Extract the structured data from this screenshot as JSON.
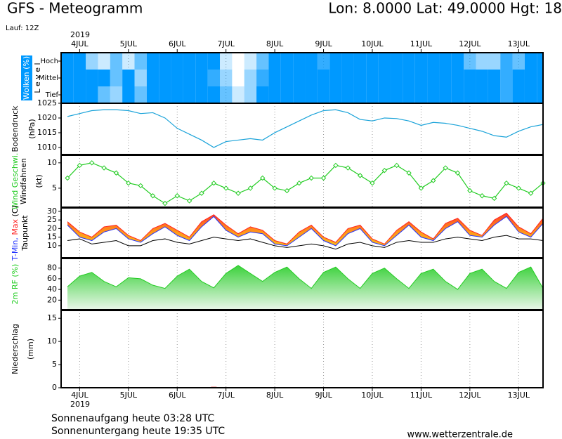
{
  "header": {
    "title": "GFS - Meteogramm",
    "location": "Lon: 8.0000 Lat: 49.0000 Hgt: 18",
    "run": "Lauf: 12Z",
    "year": "2019"
  },
  "footer": {
    "sunrise": "Sonnenaufgang heute 03:28 UTC",
    "sunset": "Sonnenuntergang heute 19:35 UTC",
    "source": "www.wetterzentrale.de"
  },
  "chart_data": [
    {
      "type": "heatmap",
      "ylabel": "Wolken (%)",
      "level_label": "L e v e l",
      "color": "#0099ff",
      "xlim": [
        3.62,
        13.5
      ],
      "xticks": [
        {
          "value": 4,
          "label": "4JUL"
        },
        {
          "value": 5,
          "label": "5JUL"
        },
        {
          "value": 6,
          "label": "6JUL"
        },
        {
          "value": 7,
          "label": "7JUL"
        },
        {
          "value": 8,
          "label": "8JUL"
        },
        {
          "value": 9,
          "label": "9JUL"
        },
        {
          "value": 10,
          "label": "10JUL"
        },
        {
          "value": 11,
          "label": "11JUL"
        },
        {
          "value": 12,
          "label": "12JUL"
        },
        {
          "value": 13,
          "label": "13JUL"
        }
      ],
      "x": [
        3.75,
        4,
        4.25,
        4.5,
        4.75,
        5,
        5.25,
        5.5,
        5.75,
        6,
        6.25,
        6.5,
        6.75,
        7,
        7.25,
        7.5,
        7.75,
        8,
        8.25,
        8.5,
        8.75,
        9,
        9.25,
        9.5,
        9.75,
        10,
        10.25,
        10.5,
        10.75,
        11,
        11.25,
        11.5,
        11.75,
        12,
        12.25,
        12.5,
        12.75,
        13,
        13.25,
        13.5
      ],
      "series": [
        {
          "name": "Hoch",
          "values": [
            100,
            100,
            40,
            20,
            60,
            20,
            60,
            100,
            100,
            100,
            100,
            100,
            100,
            20,
            0,
            20,
            60,
            100,
            100,
            100,
            100,
            80,
            100,
            100,
            100,
            100,
            100,
            100,
            100,
            100,
            100,
            100,
            100,
            60,
            40,
            40,
            80,
            60,
            100,
            100
          ]
        },
        {
          "name": "Mittel",
          "values": [
            100,
            100,
            100,
            100,
            60,
            100,
            40,
            100,
            100,
            100,
            100,
            100,
            80,
            40,
            0,
            40,
            80,
            100,
            100,
            100,
            100,
            100,
            100,
            100,
            100,
            100,
            100,
            100,
            100,
            100,
            100,
            100,
            100,
            100,
            100,
            100,
            80,
            100,
            100,
            100
          ]
        },
        {
          "name": "Tief",
          "values": [
            100,
            100,
            100,
            60,
            40,
            100,
            60,
            100,
            100,
            100,
            100,
            100,
            100,
            60,
            20,
            40,
            100,
            100,
            100,
            100,
            100,
            100,
            100,
            100,
            100,
            100,
            100,
            100,
            100,
            100,
            100,
            100,
            100,
            100,
            100,
            100,
            80,
            100,
            100,
            100
          ]
        }
      ]
    },
    {
      "type": "line",
      "ylabel": "Bodendruck",
      "yunit": "(hPa)",
      "xlim": [
        3.62,
        13.5
      ],
      "xticks": [
        {
          "value": 4,
          "label": "4JUL"
        },
        {
          "value": 5,
          "label": "5JUL"
        },
        {
          "value": 6,
          "label": "6JUL"
        },
        {
          "value": 7,
          "label": "7JUL"
        },
        {
          "value": 8,
          "label": "8JUL"
        },
        {
          "value": 9,
          "label": "9JUL"
        },
        {
          "value": 10,
          "label": "10JUL"
        },
        {
          "value": 11,
          "label": "11JUL"
        },
        {
          "value": 12,
          "label": "12JUL"
        },
        {
          "value": 13,
          "label": "13JUL"
        }
      ],
      "ylim": [
        1007.6,
        1025
      ],
      "yticks": [
        1010,
        1015,
        1020,
        1025
      ],
      "x": [
        3.75,
        4,
        4.25,
        4.5,
        4.75,
        5,
        5.25,
        5.5,
        5.75,
        6,
        6.25,
        6.5,
        6.75,
        7,
        7.25,
        7.5,
        7.75,
        8,
        8.25,
        8.5,
        8.75,
        9,
        9.25,
        9.5,
        9.75,
        10,
        10.25,
        10.5,
        10.75,
        11,
        11.25,
        11.5,
        11.75,
        12,
        12.25,
        12.5,
        12.75,
        13,
        13.25,
        13.5
      ],
      "series": [
        {
          "color": "#1aa3d9",
          "values": [
            1020.5,
            1021.5,
            1022.5,
            1022.8,
            1022.8,
            1022.5,
            1021.5,
            1021.8,
            1020,
            1016.5,
            1014.5,
            1012.5,
            1010,
            1012,
            1012.5,
            1013,
            1012.5,
            1015,
            1017,
            1019,
            1021,
            1022.5,
            1022.8,
            1021.8,
            1019.5,
            1019,
            1020,
            1019.8,
            1019,
            1017.5,
            1018.5,
            1018.2,
            1017.5,
            1016.5,
            1015.5,
            1014,
            1013.5,
            1015.5,
            1017,
            1017.8
          ]
        }
      ]
    },
    {
      "type": "line",
      "markers": true,
      "ylabel": "Windfahnen",
      "yunit": "(kt)",
      "xlim": [
        3.62,
        13.5
      ],
      "xticks": [
        {
          "value": 4,
          "label": "4JUL"
        },
        {
          "value": 5,
          "label": "5JUL"
        },
        {
          "value": 6,
          "label": "6JUL"
        },
        {
          "value": 7,
          "label": "7JUL"
        },
        {
          "value": 8,
          "label": "8JUL"
        },
        {
          "value": 9,
          "label": "9JUL"
        },
        {
          "value": 10,
          "label": "10JUL"
        },
        {
          "value": 11,
          "label": "11JUL"
        },
        {
          "value": 12,
          "label": "12JUL"
        },
        {
          "value": 13,
          "label": "13JUL"
        }
      ],
      "ylim": [
        1.25,
        11.5
      ],
      "yticks": [
        5,
        10
      ],
      "x": [
        3.75,
        4,
        4.25,
        4.5,
        4.75,
        5,
        5.25,
        5.5,
        5.75,
        6,
        6.25,
        6.5,
        6.75,
        7,
        7.25,
        7.5,
        7.75,
        8,
        8.25,
        8.5,
        8.75,
        9,
        9.25,
        9.5,
        9.75,
        10,
        10.25,
        10.5,
        10.75,
        11,
        11.25,
        11.5,
        11.75,
        12,
        12.25,
        12.5,
        12.75,
        13,
        13.25,
        13.5
      ],
      "series": [
        {
          "name": "Wind Geschwi.",
          "color": "#22cc22",
          "values": [
            7,
            9.5,
            10,
            9,
            8,
            6,
            5.5,
            3.5,
            2,
            3.5,
            2.5,
            4,
            6,
            5,
            4,
            5,
            7,
            5,
            4.5,
            6,
            7,
            7,
            9.5,
            9,
            7.5,
            6,
            8.5,
            9.5,
            8,
            5,
            6.5,
            9,
            8,
            4.5,
            3.5,
            3,
            6,
            5,
            4,
            6
          ]
        }
      ]
    },
    {
      "type": "band",
      "yunit": "(C)",
      "fill_colors": [
        "#ff2a2a",
        "#ff9a1a",
        "#f2d21c"
      ],
      "xlim": [
        3.62,
        13.5
      ],
      "xticks": [
        {
          "value": 4,
          "label": "4JUL"
        },
        {
          "value": 5,
          "label": "5JUL"
        },
        {
          "value": 6,
          "label": "6JUL"
        },
        {
          "value": 7,
          "label": "7JUL"
        },
        {
          "value": 8,
          "label": "8JUL"
        },
        {
          "value": 9,
          "label": "9JUL"
        },
        {
          "value": 10,
          "label": "10JUL"
        },
        {
          "value": 11,
          "label": "11JUL"
        },
        {
          "value": 12,
          "label": "12JUL"
        },
        {
          "value": 13,
          "label": "13JUL"
        }
      ],
      "ylim": [
        3,
        32
      ],
      "yticks": [
        10,
        15,
        20,
        25,
        30
      ],
      "x": [
        3.75,
        4,
        4.25,
        4.5,
        4.75,
        5,
        5.25,
        5.5,
        5.75,
        6,
        6.25,
        6.5,
        6.75,
        7,
        7.25,
        7.5,
        7.75,
        8,
        8.25,
        8.5,
        8.75,
        9,
        9.25,
        9.5,
        9.75,
        10,
        10.25,
        10.5,
        10.75,
        11,
        11.25,
        11.5,
        11.75,
        12,
        12.25,
        12.5,
        12.75,
        13,
        13.25,
        13.5
      ],
      "series": [
        {
          "name": "Max",
          "color": "#ff2222",
          "values": [
            24,
            18,
            15,
            21,
            22,
            16,
            13,
            20,
            23,
            19,
            15,
            24,
            28,
            22,
            17,
            21,
            19,
            13,
            11,
            18,
            22,
            15,
            12,
            20,
            22,
            14,
            11,
            19,
            24,
            18,
            14,
            23,
            26,
            19,
            16,
            25,
            29,
            21,
            17,
            26
          ]
        },
        {
          "name": "T-Min,",
          "color": "#2233ff",
          "values": [
            22,
            15,
            13,
            18,
            20,
            14,
            12,
            17,
            21,
            16,
            13,
            21,
            27,
            19,
            15,
            18,
            17,
            11,
            10,
            15,
            20,
            13,
            10,
            17,
            20,
            12,
            10,
            16,
            22,
            15,
            13,
            20,
            24,
            16,
            15,
            22,
            27,
            18,
            15,
            23
          ]
        },
        {
          "name": "Taupunkt",
          "color": "#000000",
          "values": [
            13,
            14,
            11,
            12,
            13,
            10,
            10,
            13,
            14,
            12,
            11,
            13,
            15,
            14,
            13,
            14,
            12,
            10,
            9,
            10,
            11,
            10,
            8,
            11,
            12,
            10,
            9,
            12,
            13,
            12,
            12,
            14,
            15,
            14,
            13,
            15,
            16,
            14,
            14,
            13
          ]
        }
      ]
    },
    {
      "type": "area",
      "fill_colors": [
        "#22cc22",
        "#e9f6e9"
      ],
      "xlim": [
        3.62,
        13.5
      ],
      "xticks": [
        {
          "value": 4,
          "label": "4JUL"
        },
        {
          "value": 5,
          "label": "5JUL"
        },
        {
          "value": 6,
          "label": "6JUL"
        },
        {
          "value": 7,
          "label": "7JUL"
        },
        {
          "value": 8,
          "label": "8JUL"
        },
        {
          "value": 9,
          "label": "9JUL"
        },
        {
          "value": 10,
          "label": "10JUL"
        },
        {
          "value": 11,
          "label": "11JUL"
        },
        {
          "value": 12,
          "label": "12JUL"
        },
        {
          "value": 13,
          "label": "13JUL"
        }
      ],
      "ylim": [
        2,
        98
      ],
      "yticks": [
        20,
        40,
        60,
        80
      ],
      "x": [
        3.75,
        4,
        4.25,
        4.5,
        4.75,
        5,
        5.25,
        5.5,
        5.75,
        6,
        6.25,
        6.5,
        6.75,
        7,
        7.25,
        7.5,
        7.75,
        8,
        8.25,
        8.5,
        8.75,
        9,
        9.25,
        9.5,
        9.75,
        10,
        10.25,
        10.5,
        10.75,
        11,
        11.25,
        11.5,
        11.75,
        12,
        12.25,
        12.5,
        12.75,
        13,
        13.25,
        13.5
      ],
      "series": [
        {
          "name": "2m RF (%)",
          "color": "#22cc22",
          "values": [
            45,
            65,
            72,
            55,
            45,
            62,
            60,
            48,
            42,
            65,
            78,
            55,
            43,
            70,
            85,
            70,
            55,
            72,
            82,
            60,
            42,
            72,
            82,
            60,
            42,
            70,
            80,
            60,
            42,
            70,
            78,
            55,
            40,
            70,
            78,
            55,
            42,
            72,
            82,
            42
          ]
        }
      ]
    },
    {
      "type": "bar",
      "ylabel": "Niederschlag",
      "yunit": "(mm)",
      "color": "#ee2222",
      "xlim": [
        3.62,
        13.5
      ],
      "xticks": [
        {
          "value": 4,
          "label": "4JUL"
        },
        {
          "value": 5,
          "label": "5JUL"
        },
        {
          "value": 6,
          "label": "6JUL"
        },
        {
          "value": 7,
          "label": "7JUL"
        },
        {
          "value": 8,
          "label": "8JUL"
        },
        {
          "value": 9,
          "label": "9JUL"
        },
        {
          "value": 10,
          "label": "10JUL"
        },
        {
          "value": 11,
          "label": "11JUL"
        },
        {
          "value": 12,
          "label": "12JUL"
        },
        {
          "value": 13,
          "label": "13JUL"
        }
      ],
      "ylim": [
        0,
        16.7
      ],
      "yticks": [
        0,
        5,
        10,
        15
      ],
      "x": [
        3.75,
        4,
        4.25,
        4.5,
        4.75,
        5,
        5.25,
        5.5,
        5.75,
        6,
        6.25,
        6.5,
        6.75,
        7,
        7.25,
        7.5,
        7.75,
        8,
        8.25,
        8.5,
        8.75,
        9,
        9.25,
        9.5,
        9.75,
        10,
        10.25,
        10.5,
        10.75,
        11,
        11.25,
        11.5,
        11.75,
        12,
        12.25,
        12.5,
        12.75,
        13,
        13.25,
        13.5
      ],
      "values": [
        0,
        0,
        0,
        0,
        0,
        0,
        0,
        0,
        0,
        0,
        0,
        0,
        0.2,
        0,
        0,
        0,
        0,
        0,
        0,
        0,
        0,
        0,
        0,
        0,
        0,
        0,
        0,
        0,
        0,
        0,
        0,
        0,
        0,
        0,
        0,
        0,
        0,
        0,
        0,
        0
      ]
    }
  ]
}
